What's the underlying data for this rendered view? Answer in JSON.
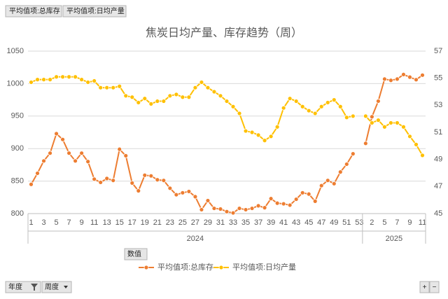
{
  "chart_data": {
    "type": "line",
    "title": "焦炭日均产量、库存趋势（周）",
    "field_buttons": [
      "平均值项:总库存",
      "平均值项:日均产量"
    ],
    "values_button": "数值",
    "axis_buttons": [
      "年度",
      "周度"
    ],
    "zoom_buttons": [
      "+",
      "−"
    ],
    "category_groups": [
      {
        "name": "2024",
        "categories": [
          "1",
          null,
          "3",
          null,
          "5",
          null,
          "7",
          null,
          "9",
          null,
          "11",
          null,
          "13",
          null,
          "15",
          null,
          "17",
          null,
          "19",
          null,
          "21",
          null,
          "23",
          null,
          "25",
          null,
          "27",
          null,
          "29",
          null,
          "31",
          null,
          "33",
          null,
          "35",
          null,
          "37",
          null,
          "39",
          null,
          "41",
          null,
          "43",
          null,
          "45",
          null,
          "47",
          null,
          "49",
          null,
          "51",
          null,
          "53"
        ]
      },
      {
        "name": "2025",
        "categories": [
          null,
          "2",
          null,
          "5",
          null,
          "7",
          null,
          "9",
          null,
          "11"
        ]
      }
    ],
    "series": [
      {
        "name": "平均值项:总库存",
        "color": "#ed7d31",
        "axis": "y",
        "values": [
          845,
          862,
          881,
          893,
          923,
          914,
          893,
          881,
          893,
          880,
          853,
          848,
          854,
          851,
          899,
          889,
          847,
          835,
          859,
          858,
          852,
          851,
          839,
          829,
          832,
          834,
          826,
          806,
          820,
          808,
          807,
          803,
          801,
          808,
          806,
          808,
          812,
          809,
          823,
          816,
          815,
          813,
          822,
          832,
          830,
          819,
          843,
          851,
          846,
          864,
          876,
          892,
          null,
          908,
          949,
          973,
          1007,
          1005,
          1007,
          1014,
          1010,
          1006,
          1013
        ]
      },
      {
        "name": "平均值项:日均产量",
        "color": "#ffc000",
        "axis": "y2",
        "values": [
          54.7,
          54.9,
          54.9,
          54.9,
          55.1,
          55.1,
          55.1,
          55.1,
          54.9,
          54.7,
          54.8,
          54.3,
          54.3,
          54.3,
          54.4,
          53.7,
          53.6,
          53.2,
          53.5,
          53.1,
          53.3,
          53.3,
          53.7,
          53.8,
          53.6,
          53.6,
          54.3,
          54.7,
          54.3,
          54.0,
          53.7,
          53.3,
          52.9,
          52.4,
          51.1,
          51.0,
          50.8,
          50.4,
          50.7,
          51.4,
          52.8,
          53.5,
          53.3,
          52.9,
          52.6,
          52.4,
          52.9,
          53.2,
          53.4,
          52.9,
          52.1,
          52.2,
          null,
          52.2,
          51.7,
          51.9,
          51.4,
          51.7,
          51.7,
          51.4,
          50.7,
          50.1,
          49.3
        ]
      }
    ],
    "ylim": [
      800,
      1050
    ],
    "yticks": [
      800,
      850,
      900,
      950,
      1000,
      1050
    ],
    "y2lim": [
      45,
      57
    ],
    "y2ticks": [
      45,
      47,
      49,
      51,
      53,
      55,
      57
    ],
    "grid": true
  }
}
